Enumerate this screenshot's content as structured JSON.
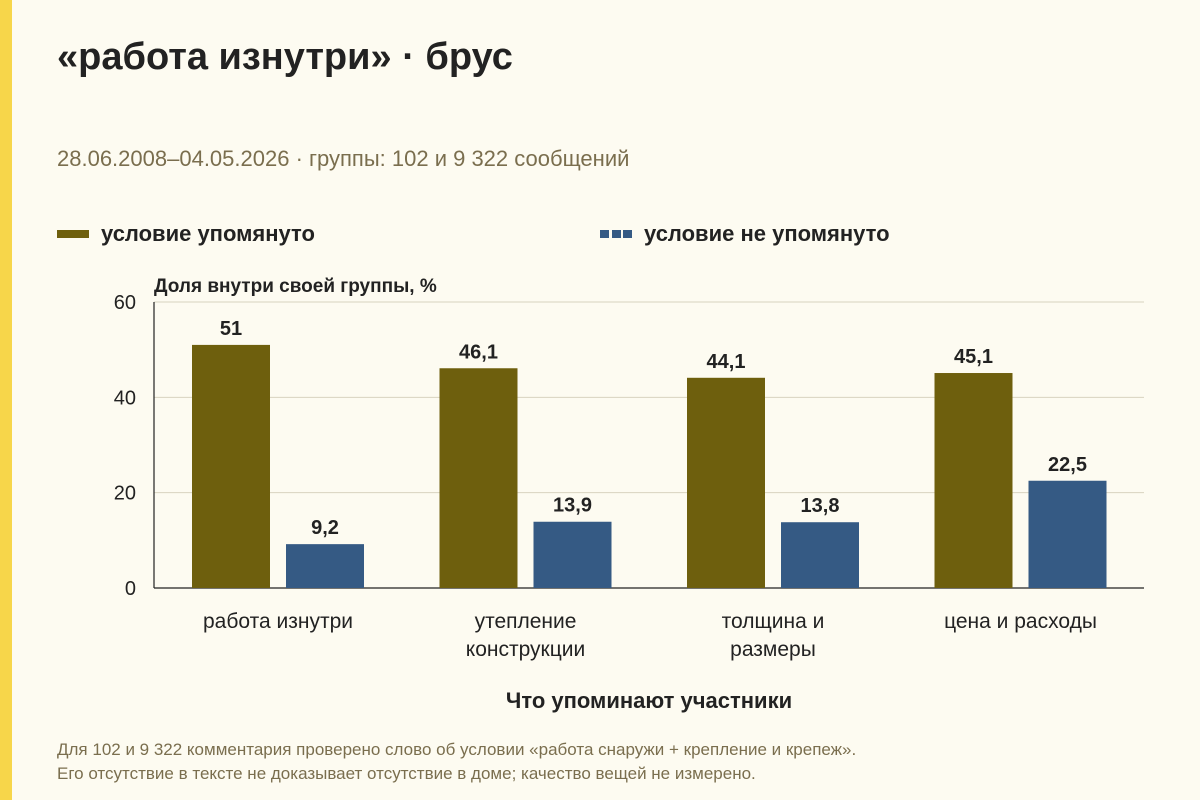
{
  "title": "«работа изнутри» · брус",
  "subtitle": "28.06.2008–04.05.2026 · группы: 102 и 9 322 сообщений",
  "footnote": [
    "Для 102 и 9 322 комментария проверено слово об условии «работа снаружи + крепление и крепеж».",
    "Его отсутствие в тексте не доказывает отсутствие в доме; качество вещей не измерено."
  ],
  "colors": {
    "accent_bar": "#f7d64a",
    "series_mentioned": "#6e5f0d",
    "series_not_mentioned": "#355a84"
  },
  "chart_data": {
    "type": "bar",
    "title": "",
    "ylabel": "Доля внутри своей группы, %",
    "xlabel": "Что упоминают участники",
    "ylim": [
      0,
      60
    ],
    "yticks": [
      "0",
      "20",
      "40",
      "60"
    ],
    "grid": true,
    "legend_position": "top",
    "categories": [
      [
        "работа изнутри"
      ],
      [
        "утепление",
        "конструкции"
      ],
      [
        "толщина и",
        "размеры"
      ],
      [
        "цена и расходы"
      ]
    ],
    "series": [
      {
        "name": "условие упомянуто",
        "color": "#6e5f0d",
        "legend_style": "solid",
        "values": [
          51,
          46.1,
          44.1,
          45.1
        ],
        "labels": [
          "51",
          "46,1",
          "44,1",
          "45,1"
        ]
      },
      {
        "name": "условие не упомянуто",
        "color": "#355a84",
        "legend_style": "dashed",
        "values": [
          9.2,
          13.9,
          13.8,
          22.5
        ],
        "labels": [
          "9,2",
          "13,9",
          "13,8",
          "22,5"
        ]
      }
    ]
  }
}
